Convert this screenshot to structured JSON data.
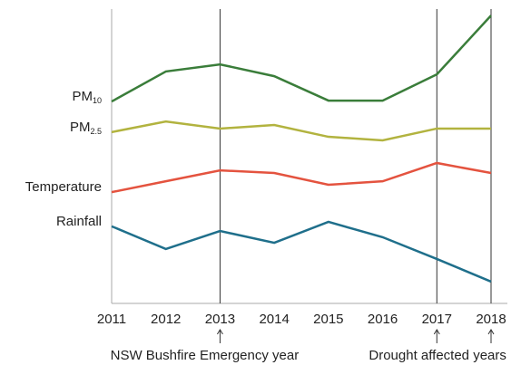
{
  "chart_data": {
    "type": "line",
    "categories": [
      "2011",
      "2012",
      "2013",
      "2014",
      "2015",
      "2016",
      "2017",
      "2018"
    ],
    "series": [
      {
        "name": "PM10",
        "color": "#3a7d3a",
        "values": [
          68.6,
          78.8,
          81.2,
          77.2,
          68.9,
          68.9,
          77.8,
          97.8
        ]
      },
      {
        "name": "PM2.5",
        "color": "#b2b33f",
        "values": [
          58.2,
          61.8,
          59.4,
          60.6,
          56.6,
          55.4,
          59.4,
          59.4
        ]
      },
      {
        "name": "Temperature",
        "color": "#e4533f",
        "values": [
          37.8,
          41.5,
          45.2,
          44.3,
          40.3,
          41.5,
          47.7,
          44.3
        ]
      },
      {
        "name": "Rainfall",
        "color": "#1f6f8b",
        "values": [
          26.2,
          18.5,
          24.6,
          20.6,
          27.7,
          22.5,
          15.1,
          7.4
        ]
      }
    ],
    "ylim": [
      0,
      100
    ],
    "annotations": [
      {
        "text": "NSW Bushfire Emergency year",
        "categories": [
          "2013"
        ]
      },
      {
        "text": "Drought affected years",
        "categories": [
          "2017",
          "2018"
        ]
      }
    ]
  }
}
